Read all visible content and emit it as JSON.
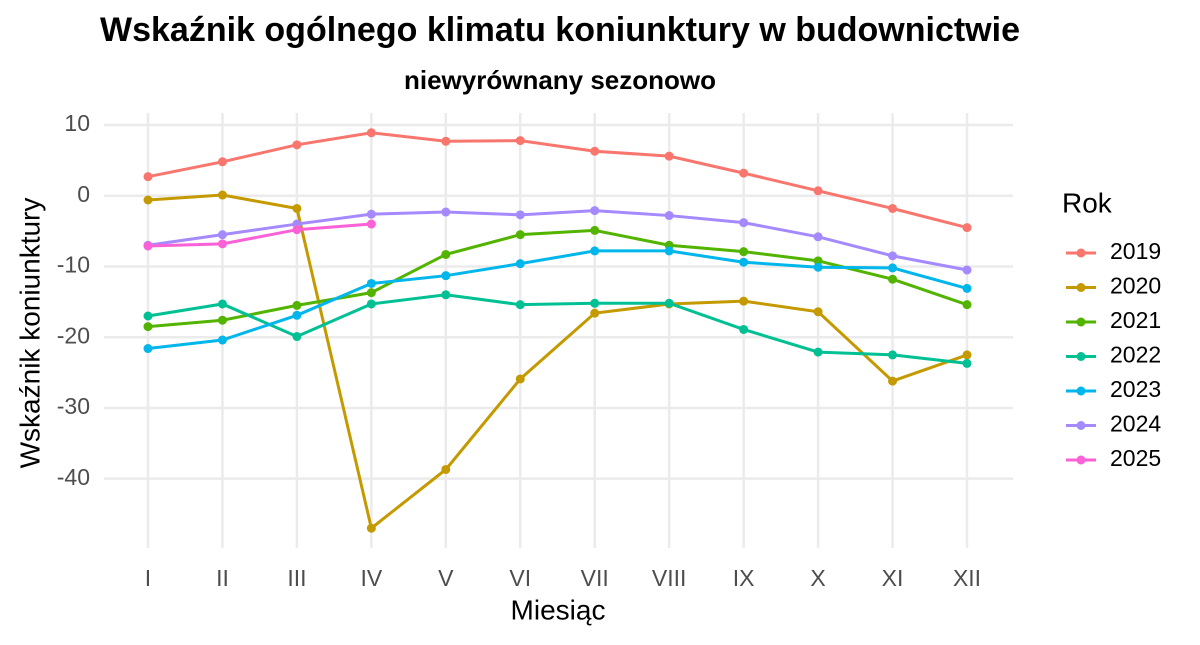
{
  "chart_data": {
    "type": "line",
    "title": "Wskaźnik ogólnego klimatu koniunktury w budownictwie",
    "subtitle": "niewyrównany sezonowo",
    "x_label": "Miesiąc",
    "y_label": "Wskaźnik koniunktury",
    "legend_title": "Rok",
    "legend_position": "right",
    "grid": true,
    "categories": [
      "I",
      "II",
      "III",
      "IV",
      "V",
      "VI",
      "VII",
      "VIII",
      "IX",
      "X",
      "XI",
      "XII"
    ],
    "ylim": [
      -49.8,
      11.7
    ],
    "yticks": [
      10,
      0,
      -10,
      -20,
      -30,
      -40
    ],
    "series": [
      {
        "name": "2019",
        "color": "#F8766D",
        "values": [
          2.7,
          4.8,
          7.2,
          8.9,
          7.7,
          7.8,
          6.3,
          5.6,
          3.2,
          0.7,
          -1.8,
          -4.5
        ]
      },
      {
        "name": "2020",
        "color": "#C49A00",
        "values": [
          -0.6,
          0.1,
          -1.8,
          -47.0,
          -38.7,
          -25.9,
          -16.6,
          -15.3,
          -14.9,
          -16.4,
          -26.2,
          -22.5
        ]
      },
      {
        "name": "2021",
        "color": "#53B400",
        "values": [
          -18.5,
          -17.6,
          -15.5,
          -13.7,
          -8.3,
          -5.5,
          -4.9,
          -7.0,
          -7.9,
          -9.2,
          -11.8,
          -15.4
        ]
      },
      {
        "name": "2022",
        "color": "#00C094",
        "values": [
          -17.0,
          -15.3,
          -19.9,
          -15.3,
          -14.0,
          -15.4,
          -15.2,
          -15.2,
          -18.9,
          -22.1,
          -22.5,
          -23.7
        ]
      },
      {
        "name": "2023",
        "color": "#00B6EB",
        "values": [
          -21.6,
          -20.4,
          -16.9,
          -12.4,
          -11.3,
          -9.6,
          -7.8,
          -7.8,
          -9.4,
          -10.1,
          -10.2,
          -13.1
        ]
      },
      {
        "name": "2024",
        "color": "#A58AFF",
        "values": [
          -7.0,
          -5.5,
          -4.0,
          -2.6,
          -2.3,
          -2.7,
          -2.1,
          -2.8,
          -3.8,
          -5.8,
          -8.5,
          -10.5
        ]
      },
      {
        "name": "2025",
        "color": "#FB61D7",
        "values": [
          -7.1,
          -6.8,
          -4.8,
          -4.0,
          null,
          null,
          null,
          null,
          null,
          null,
          null,
          null
        ]
      }
    ]
  }
}
